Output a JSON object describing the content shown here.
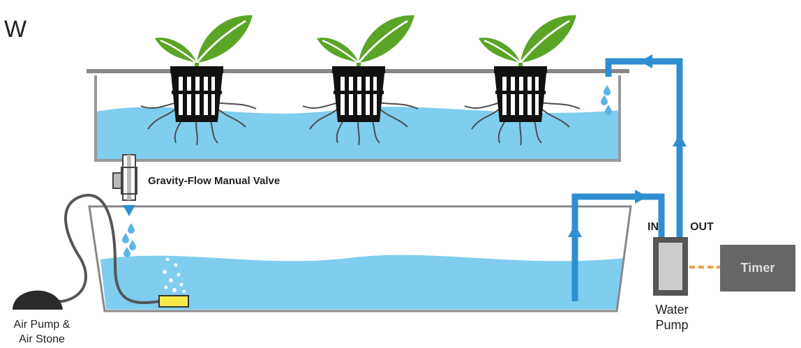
{
  "header": {
    "title": "W"
  },
  "labels": {
    "valve": "Gravity-Flow Manual Valve",
    "pump_in": "IN",
    "pump_out": "OUT",
    "timer": "Timer",
    "water_pump": [
      "Water",
      "Pump"
    ],
    "air_pump": [
      "Air Pump &",
      "Air Stone"
    ]
  }
}
